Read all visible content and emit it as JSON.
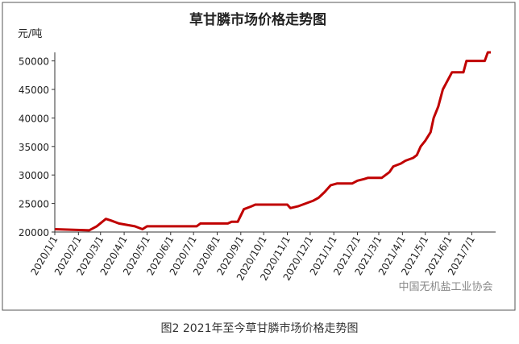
{
  "chart_data": {
    "type": "line",
    "title": "草甘膦市场价格走势图",
    "y_label": "元/吨",
    "caption": "图2 2021年至今草甘膦市场价格走势图",
    "watermark": "中国无机盐工业协会",
    "x": [
      "2020/1/1",
      "2020/2/15",
      "2020/2/25",
      "2020/3/8",
      "2020/3/15",
      "2020/3/25",
      "2020/4/15",
      "2020/4/25",
      "2020/5/1",
      "2020/7/5",
      "2020/7/10",
      "2020/8/15",
      "2020/8/20",
      "2020/8/28",
      "2020/9/5",
      "2020/9/15",
      "2020/9/20",
      "2020/11/1",
      "2020/11/5",
      "2020/11/15",
      "2020/11/25",
      "2020/12/5",
      "2020/12/12",
      "2020/12/20",
      "2020/12/28",
      "2021/1/5",
      "2021/1/25",
      "2021/2/1",
      "2021/2/10",
      "2021/2/15",
      "2021/3/5",
      "2021/3/10",
      "2021/3/15",
      "2021/3/20",
      "2021/3/30",
      "2021/4/5",
      "2021/4/15",
      "2021/4/20",
      "2021/4/25",
      "2021/5/1",
      "2021/5/8",
      "2021/5/12",
      "2021/5/18",
      "2021/5/24",
      "2021/6/1",
      "2021/6/5",
      "2021/6/20",
      "2021/6/24",
      "2021/7/18",
      "2021/7/22",
      "2021/7/26"
    ],
    "series": [
      {
        "name": "草甘膦",
        "color": "#c00000",
        "values": [
          20500,
          20300,
          21000,
          22300,
          22000,
          21500,
          21000,
          20500,
          21000,
          21000,
          21500,
          21500,
          21800,
          21800,
          24000,
          24500,
          24800,
          24800,
          24200,
          24500,
          25000,
          25500,
          26000,
          27000,
          28200,
          28500,
          28500,
          29000,
          29300,
          29500,
          29500,
          30000,
          30500,
          31500,
          32000,
          32500,
          33000,
          33500,
          35000,
          36000,
          37500,
          40000,
          42000,
          45000,
          47000,
          48000,
          48000,
          50000,
          50000,
          51500,
          51500
        ]
      }
    ],
    "xlim": [
      "2020/1/1",
      "2021/7/27"
    ],
    "xticks": [
      "2020/1/1",
      "2020/2/1",
      "2020/3/1",
      "2020/4/1",
      "2020/5/1",
      "2020/6/1",
      "2020/7/1",
      "2020/8/1",
      "2020/9/1",
      "2020/10/1",
      "2020/11/1",
      "2020/12/1",
      "2021/1/1",
      "2021/2/1",
      "2021/3/1",
      "2021/4/1",
      "2021/5/1",
      "2021/6/1",
      "2021/7/1"
    ],
    "ylim": [
      20000,
      51500
    ],
    "yticks": [
      20000,
      25000,
      30000,
      35000,
      40000,
      45000,
      50000
    ],
    "grid": false
  }
}
